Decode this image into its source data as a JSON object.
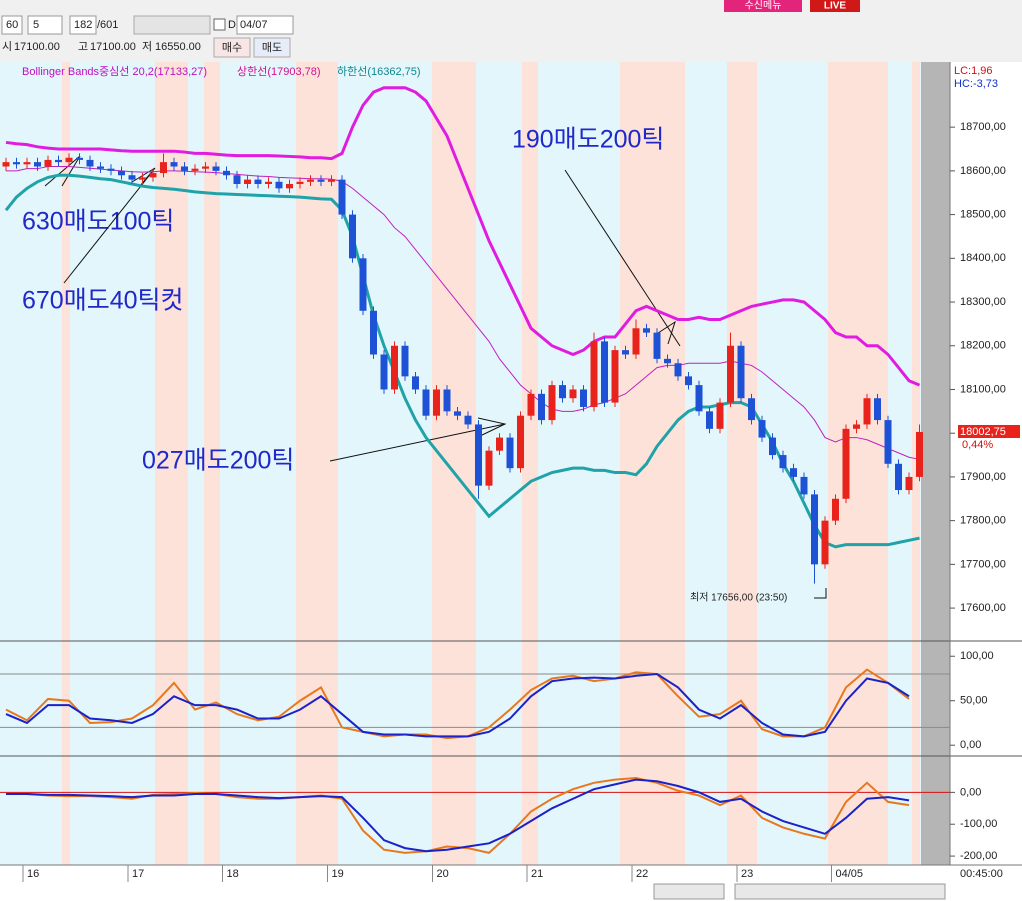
{
  "toolbar": {
    "interval": "60",
    "count": "5",
    "position": "182",
    "total": "/601",
    "checkbox_label": "D",
    "date": "04/07",
    "menu_button": "수신메뉴",
    "live": "LIVE"
  },
  "quote": {
    "open_label": "시",
    "open": "17100.00",
    "high_label": "고",
    "high": "17100.00",
    "low_label": "저",
    "low": "16550.00",
    "buy": "매수",
    "sell": "매도"
  },
  "legend": {
    "bollinger": "Bollinger Bands중심선 20,2(17133,27)",
    "upper": "상한선(17903,78)",
    "lower": "하한선(16362,75)",
    "lc": "LC:1,96",
    "hc": "HC:-3,73"
  },
  "annotations": [
    "630매도100틱",
    "670매도40틱컷",
    "190매도200틱",
    "027매도200틱"
  ],
  "status": {
    "time": "00:45:00"
  },
  "chart_data": [
    {
      "type": "candlestick",
      "up_color": "#e8231c",
      "down_color": "#1d52d6",
      "categories": [
        null,
        null,
        "16",
        null,
        null,
        null,
        null,
        null,
        null,
        null,
        null,
        null,
        "17",
        null,
        null,
        null,
        null,
        null,
        null,
        null,
        null,
        "18",
        null,
        null,
        null,
        null,
        null,
        null,
        null,
        null,
        null,
        "19",
        null,
        null,
        null,
        null,
        null,
        null,
        null,
        null,
        null,
        "20",
        null,
        null,
        null,
        null,
        null,
        null,
        null,
        null,
        "21",
        null,
        null,
        null,
        null,
        null,
        null,
        null,
        null,
        null,
        "22",
        null,
        null,
        null,
        null,
        null,
        null,
        null,
        null,
        null,
        "23",
        null,
        null,
        null,
        null,
        null,
        null,
        null,
        null,
        "04/05",
        null,
        null,
        null,
        null,
        null,
        null,
        null,
        null
      ],
      "open": [
        18610,
        18620,
        18615,
        18620,
        18610,
        18625,
        18620,
        18630,
        18625,
        18610,
        18605,
        18600,
        18590,
        18580,
        18585,
        18595,
        18620,
        18610,
        18600,
        18605,
        18610,
        18600,
        18590,
        18570,
        18580,
        18570,
        18575,
        18560,
        18570,
        18575,
        18580,
        18575,
        18580,
        18500,
        18400,
        18280,
        18180,
        18100,
        18200,
        18130,
        18100,
        18040,
        18100,
        18050,
        18040,
        18020,
        17880,
        17960,
        17990,
        17920,
        18040,
        18090,
        18030,
        18110,
        18080,
        18100,
        18060,
        18210,
        18070,
        18190,
        18180,
        18240,
        18230,
        18170,
        18160,
        18130,
        18110,
        18050,
        18010,
        18070,
        18200,
        18080,
        18030,
        17990,
        17950,
        17920,
        17900,
        17860,
        17700,
        17800,
        17850,
        18010,
        18020,
        18080,
        18030,
        17930,
        17870,
        17900
      ],
      "high": [
        18630,
        18630,
        18630,
        18630,
        18635,
        18635,
        18640,
        18640,
        18635,
        18620,
        18615,
        18610,
        18600,
        18595,
        18605,
        18640,
        18630,
        18620,
        18615,
        18620,
        18620,
        18610,
        18600,
        18590,
        18590,
        18585,
        18585,
        18580,
        18585,
        18590,
        18590,
        18590,
        18590,
        18510,
        18410,
        18290,
        18190,
        18210,
        18210,
        18140,
        18110,
        18110,
        18110,
        18060,
        18050,
        18030,
        17970,
        18000,
        18000,
        18050,
        18100,
        18100,
        18120,
        18120,
        18110,
        18110,
        18230,
        18220,
        18200,
        18200,
        18260,
        18250,
        18240,
        18180,
        18170,
        18140,
        18120,
        18060,
        18080,
        18230,
        18210,
        18090,
        18040,
        18000,
        17960,
        17930,
        17910,
        17870,
        17810,
        17860,
        18020,
        18030,
        18090,
        18090,
        18040,
        17940,
        17910,
        18020
      ],
      "low": [
        18600,
        18605,
        18605,
        18600,
        18600,
        18610,
        18610,
        18615,
        18600,
        18595,
        18590,
        18580,
        18570,
        18570,
        18575,
        18585,
        18600,
        18590,
        18590,
        18595,
        18590,
        18580,
        18560,
        18560,
        18560,
        18560,
        18550,
        18550,
        18560,
        18565,
        18565,
        18565,
        18490,
        18390,
        18270,
        18170,
        18090,
        18090,
        18120,
        18090,
        18030,
        18030,
        18040,
        18030,
        18010,
        17850,
        17870,
        17950,
        17910,
        17910,
        18030,
        18020,
        18020,
        18070,
        18070,
        18050,
        18050,
        18060,
        18060,
        18170,
        18170,
        18220,
        18160,
        18150,
        18120,
        18100,
        18040,
        18000,
        18000,
        18060,
        18070,
        18020,
        17980,
        17940,
        17910,
        17890,
        17850,
        17656,
        17690,
        17790,
        17840,
        18000,
        18010,
        18020,
        17920,
        17860,
        17860,
        17890
      ],
      "close": [
        18620,
        18615,
        18620,
        18610,
        18625,
        18620,
        18630,
        18625,
        18610,
        18605,
        18600,
        18590,
        18580,
        18585,
        18595,
        18620,
        18610,
        18600,
        18605,
        18610,
        18600,
        18590,
        18570,
        18580,
        18570,
        18575,
        18560,
        18570,
        18575,
        18580,
        18575,
        18580,
        18500,
        18400,
        18280,
        18180,
        18100,
        18200,
        18130,
        18100,
        18040,
        18100,
        18050,
        18040,
        18020,
        17880,
        17960,
        17990,
        17920,
        18040,
        18090,
        18030,
        18110,
        18080,
        18100,
        18060,
        18210,
        18070,
        18190,
        18180,
        18240,
        18230,
        18170,
        18160,
        18130,
        18110,
        18050,
        18010,
        18070,
        18200,
        18080,
        18030,
        17990,
        17950,
        17920,
        17900,
        17860,
        17700,
        17800,
        17850,
        18010,
        18020,
        18080,
        18030,
        17930,
        17870,
        17900,
        18002.75
      ],
      "close_label": "18002,75",
      "change_label": "0,44%",
      "low_note": "최저 17656,00 (23:50)",
      "overlays": [
        {
          "color": "#e01ce0",
          "width": 3,
          "values": [
            18665,
            18662,
            18660,
            18655,
            18652,
            18650,
            18650,
            18650,
            18650,
            18650,
            18648,
            18646,
            18645,
            18645,
            18645,
            18645,
            18645,
            18643,
            18640,
            18640,
            18638,
            18636,
            18635,
            18635,
            18635,
            18635,
            18634,
            18633,
            18632,
            18630,
            18630,
            18628,
            18640,
            18700,
            18750,
            18780,
            18790,
            18790,
            18790,
            18780,
            18760,
            18720,
            18680,
            18620,
            18560,
            18500,
            18440,
            18390,
            18340,
            18290,
            18240,
            18220,
            18200,
            18190,
            18180,
            18190,
            18210,
            18220,
            18220,
            18250,
            18280,
            18290,
            18280,
            18270,
            18260,
            18260,
            18265,
            18260,
            18260,
            18270,
            18280,
            18290,
            18295,
            18300,
            18305,
            18305,
            18300,
            18280,
            18260,
            18230,
            18220,
            18220,
            18200,
            18200,
            18180,
            18150,
            18120,
            18110
          ]
        },
        {
          "color": "#c020c0",
          "width": 1,
          "values": [
            18600,
            18600,
            18605,
            18605,
            18610,
            18610,
            18610,
            18608,
            18606,
            18604,
            18602,
            18600,
            18598,
            18597,
            18598,
            18600,
            18600,
            18599,
            18598,
            18597,
            18596,
            18594,
            18592,
            18590,
            18588,
            18587,
            18585,
            18584,
            18583,
            18582,
            18582,
            18581,
            18576,
            18560,
            18540,
            18520,
            18500,
            18470,
            18450,
            18420,
            18390,
            18360,
            18330,
            18300,
            18270,
            18240,
            18210,
            18170,
            18140,
            18110,
            18090,
            18070,
            18055,
            18050,
            18050,
            18055,
            18065,
            18070,
            18080,
            18090,
            18110,
            18130,
            18150,
            18155,
            18155,
            18160,
            18160,
            18160,
            18160,
            18165,
            18160,
            18155,
            18140,
            18120,
            18100,
            18080,
            18060,
            18030,
            17990,
            17980,
            17990,
            17990,
            17985,
            17975,
            17965,
            17955,
            17945,
            17940
          ]
        },
        {
          "color": "#1fa3a8",
          "width": 3,
          "values": [
            18510,
            18540,
            18560,
            18575,
            18585,
            18590,
            18590,
            18588,
            18585,
            18582,
            18580,
            18575,
            18570,
            18565,
            18562,
            18560,
            18558,
            18555,
            18552,
            18550,
            18548,
            18547,
            18546,
            18545,
            18544,
            18543,
            18542,
            18541,
            18540,
            18538,
            18536,
            18535,
            18510,
            18450,
            18360,
            18270,
            18200,
            18140,
            18080,
            18030,
            17990,
            17960,
            17930,
            17900,
            17870,
            17840,
            17810,
            17830,
            17850,
            17870,
            17890,
            17900,
            17910,
            17915,
            17920,
            17920,
            17915,
            17915,
            17910,
            17910,
            17905,
            17930,
            17970,
            18000,
            18030,
            18050,
            18060,
            18060,
            18065,
            18070,
            18070,
            18060,
            18020,
            17980,
            17930,
            17890,
            17840,
            17790,
            17750,
            17740,
            17745,
            17745,
            17745,
            17745,
            17745,
            17750,
            17755,
            17760
          ]
        }
      ],
      "ylim": [
        17527,
        18849
      ],
      "yticks": [
        {
          "value": 17600,
          "label": "17600,00"
        },
        {
          "value": 17700,
          "label": "17700,00"
        },
        {
          "value": 17800,
          "label": "17800,00"
        },
        {
          "value": 17900,
          "label": "17900,00"
        },
        {
          "value": 18000,
          "label": "18000,00"
        },
        {
          "value": 18100,
          "label": "18100,00"
        },
        {
          "value": 18200,
          "label": "18200,00"
        },
        {
          "value": 18300,
          "label": "18300,00"
        },
        {
          "value": 18400,
          "label": "18400,00"
        },
        {
          "value": 18500,
          "label": "18500,00"
        },
        {
          "value": 18600,
          "label": "18600,00"
        },
        {
          "value": 18700,
          "label": "18700,00"
        }
      ]
    },
    {
      "type": "line",
      "ylim": [
        -11,
        116
      ],
      "levels": [
        20,
        80
      ],
      "level_color": "#8a8a8a",
      "yticks": [
        {
          "value": 0,
          "label": "0,00"
        },
        {
          "value": 50,
          "label": "50,00"
        },
        {
          "value": 100,
          "label": "100,00"
        }
      ],
      "series": [
        {
          "color": "#e8781c",
          "values": [
            40,
            28,
            52,
            50,
            25,
            26,
            30,
            45,
            70,
            40,
            48,
            35,
            28,
            32,
            50,
            65,
            20,
            15,
            10,
            12,
            12,
            8,
            10,
            20,
            40,
            62,
            75,
            78,
            72,
            75,
            82,
            80,
            55,
            32,
            35,
            50,
            18,
            10,
            10,
            20,
            65,
            85,
            70,
            52
          ]
        },
        {
          "color": "#1a22c8",
          "values": [
            35,
            25,
            45,
            45,
            30,
            28,
            25,
            35,
            55,
            45,
            45,
            40,
            30,
            30,
            40,
            55,
            35,
            15,
            12,
            12,
            10,
            10,
            10,
            15,
            30,
            55,
            72,
            75,
            76,
            75,
            78,
            80,
            65,
            40,
            30,
            45,
            25,
            12,
            10,
            15,
            50,
            75,
            70,
            55
          ]
        }
      ]
    },
    {
      "type": "line",
      "ylim": [
        -228,
        111
      ],
      "levels": [
        0
      ],
      "level_color": "#d81010",
      "yticks": [
        {
          "value": 0,
          "label": "0,00"
        },
        {
          "value": -100,
          "label": "-100,00"
        },
        {
          "value": -200,
          "label": "-200,00"
        }
      ],
      "series": [
        {
          "color": "#e8781c",
          "values": [
            -5,
            -5,
            -10,
            -12,
            -12,
            -15,
            -20,
            -8,
            -5,
            -2,
            -5,
            -15,
            -20,
            -20,
            -15,
            -10,
            -20,
            -120,
            -180,
            -190,
            -185,
            -170,
            -175,
            -190,
            -130,
            -60,
            -20,
            10,
            30,
            40,
            45,
            30,
            5,
            -10,
            -40,
            -10,
            -80,
            -110,
            -130,
            -145,
            -30,
            30,
            -30,
            -40
          ]
        },
        {
          "color": "#1a22c8",
          "values": [
            -5,
            -5,
            -8,
            -8,
            -10,
            -12,
            -15,
            -10,
            -10,
            -5,
            -5,
            -10,
            -15,
            -18,
            -15,
            -12,
            -15,
            -80,
            -150,
            -175,
            -185,
            -180,
            -170,
            -160,
            -130,
            -90,
            -50,
            -20,
            10,
            25,
            40,
            35,
            20,
            0,
            -30,
            -20,
            -60,
            -90,
            -110,
            -130,
            -80,
            -20,
            -15,
            -25
          ]
        }
      ]
    }
  ]
}
